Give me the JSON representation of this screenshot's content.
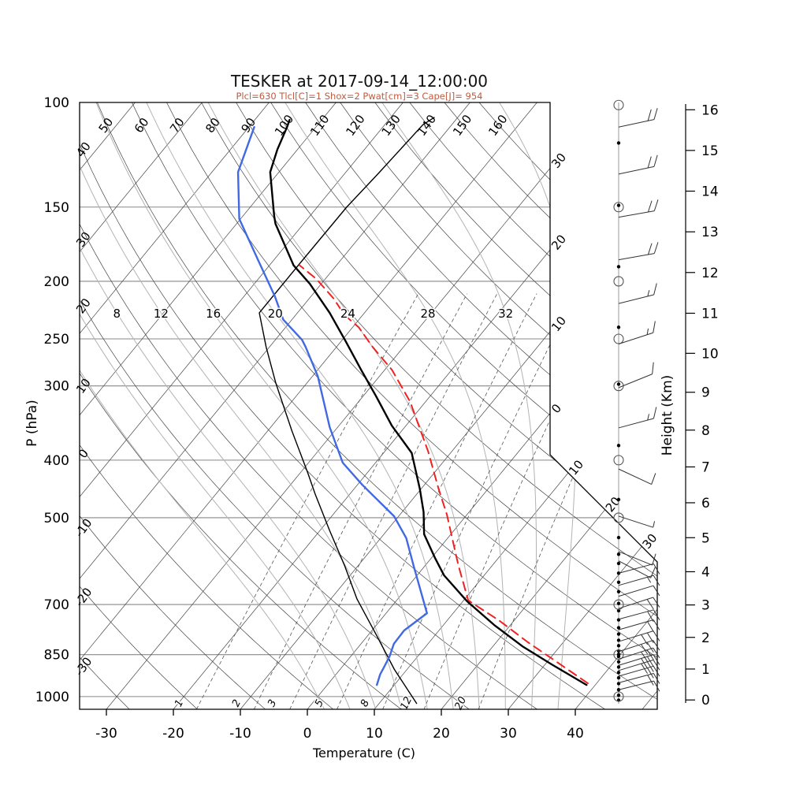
{
  "title": "TESKER at 2017-09-14_12:00:00",
  "subtitle": "Plcl=630 Tlcl[C]=1 Shox=2 Pwat[cm]=3 Cape[J]= 954",
  "colors": {
    "subtitle": "#bf5b3f",
    "temperature": "#000000",
    "dewpoint": "#4169e1",
    "parcel": "#ee2222",
    "wetbulb": "#000000",
    "grid_dark": "#444444",
    "grid_pressure": "#888888",
    "moist_adiabat": "#b3b3b3",
    "mixing_ratio": "#555555"
  },
  "axes": {
    "xlabel": "Temperature (C)",
    "ylabel": "P (hPa)",
    "ylabel_right": "Height (Km)",
    "pressure_ticks": [
      100,
      150,
      200,
      250,
      300,
      400,
      500,
      700,
      850,
      1000
    ],
    "pressure_range": [
      100,
      1050
    ],
    "temp_ticks": [
      -30,
      -20,
      -10,
      0,
      10,
      20,
      30,
      40
    ],
    "height_ticks": [
      0,
      1,
      2,
      3,
      4,
      5,
      6,
      7,
      8,
      9,
      10,
      11,
      12,
      13,
      14,
      15,
      16
    ]
  },
  "grid": {
    "isotherms": {
      "start": -110,
      "end": 50,
      "step": 10
    },
    "isotherm_edge_labels": [
      {
        "t": -30,
        "label": "30"
      },
      {
        "t": -20,
        "label": "20"
      },
      {
        "t": -10,
        "label": "10"
      },
      {
        "t": 0,
        "label": "0"
      }
    ],
    "isotherm_diag_labels": [
      {
        "t": 10,
        "label": "10"
      },
      {
        "t": 20,
        "label": "20"
      },
      {
        "t": 30,
        "label": "30"
      }
    ],
    "dry_adiabats": {
      "start": -30,
      "end": 160,
      "step": 10
    },
    "moist_adiabats": {
      "values": [
        0,
        4,
        8,
        12,
        16,
        20,
        24,
        28,
        32,
        36
      ],
      "labeled": [
        8,
        12,
        16,
        20,
        24,
        28,
        32
      ]
    },
    "mixing_ratio_g_kg": [
      1,
      2,
      3,
      5,
      8,
      12,
      20
    ]
  },
  "chart_data": {
    "type": "skewt-log-p",
    "station": "TESKER",
    "valid_time": "2017-09-14_12:00:00",
    "parameters": {
      "Plcl": 630,
      "Tlcl_C": 1,
      "Shox": 2,
      "Pwat_cm": 3,
      "Cape_J": 954
    },
    "series": [
      {
        "name": "temperature",
        "units": "[hPa, C]",
        "points": [
          [
            956,
            38.7
          ],
          [
            883,
            31.0
          ],
          [
            823,
            24.4
          ],
          [
            758,
            17.6
          ],
          [
            691,
            10.6
          ],
          [
            625,
            4.0
          ],
          [
            584,
            0.5
          ],
          [
            533,
            -4.0
          ],
          [
            489,
            -6.8
          ],
          [
            447,
            -10.2
          ],
          [
            389,
            -15.8
          ],
          [
            350,
            -22.1
          ],
          [
            312,
            -28.1
          ],
          [
            282,
            -33.5
          ],
          [
            252,
            -39.4
          ],
          [
            226,
            -45.2
          ],
          [
            202,
            -51.7
          ],
          [
            188,
            -56.4
          ],
          [
            160,
            -64.2
          ],
          [
            155,
            -65.4
          ],
          [
            131,
            -71.3
          ],
          [
            120,
            -73.0
          ],
          [
            110,
            -74.3
          ],
          [
            107,
            -74.8
          ]
        ]
      },
      {
        "name": "dewpoint",
        "units": "[hPa, C]",
        "points": [
          [
            956,
            7.4
          ],
          [
            918,
            6.6
          ],
          [
            893,
            6.3
          ],
          [
            856,
            5.8
          ],
          [
            815,
            4.9
          ],
          [
            774,
            4.8
          ],
          [
            724,
            6.1
          ],
          [
            601,
            -1.8
          ],
          [
            541,
            -6.2
          ],
          [
            497,
            -10.7
          ],
          [
            465,
            -15.4
          ],
          [
            440,
            -19.3
          ],
          [
            404,
            -24.9
          ],
          [
            352,
            -31.2
          ],
          [
            289,
            -39.2
          ],
          [
            258,
            -44.6
          ],
          [
            251,
            -46.0
          ],
          [
            232,
            -51.3
          ],
          [
            212,
            -55.4
          ],
          [
            184,
            -62.4
          ],
          [
            157,
            -70.2
          ],
          [
            131,
            -76.1
          ],
          [
            110,
            -79.2
          ]
        ]
      },
      {
        "name": "parcel",
        "units": "[hPa, C]",
        "dashed": true,
        "points": [
          [
            950,
            38.7
          ],
          [
            875,
            31.5
          ],
          [
            810,
            24.7
          ],
          [
            745,
            17.8
          ],
          [
            689,
            10.7
          ],
          [
            601,
            4.9
          ],
          [
            494,
            -3.0
          ],
          [
            447,
            -7.4
          ],
          [
            387,
            -13.5
          ],
          [
            319,
            -22.3
          ],
          [
            282,
            -28.9
          ],
          [
            258,
            -34.6
          ],
          [
            239,
            -39.1
          ],
          [
            228,
            -42.7
          ],
          [
            214,
            -46.3
          ],
          [
            198,
            -51.4
          ],
          [
            188,
            -55.5
          ]
        ]
      },
      {
        "name": "wetbulb",
        "units": "[hPa, C]",
        "points": [
          [
            1027,
            15.6
          ],
          [
            900,
            8.1
          ],
          [
            789,
            1.3
          ],
          [
            685,
            -6.1
          ],
          [
            601,
            -12.1
          ],
          [
            525,
            -18.6
          ],
          [
            456,
            -25.2
          ],
          [
            420,
            -28.9
          ],
          [
            357,
            -36.4
          ],
          [
            297,
            -44.6
          ],
          [
            258,
            -50.5
          ],
          [
            226,
            -55.7
          ],
          [
            187,
            -55.7
          ],
          [
            150,
            -55.6
          ],
          [
            132,
            -55.0
          ],
          [
            109,
            -54.3
          ],
          [
            106,
            -53.5
          ]
        ]
      }
    ]
  },
  "wind": {
    "dots_p": [
      117,
      149,
      189,
      239,
      298,
      378,
      466,
      540,
      576,
      597,
      620,
      642,
      666,
      697,
      717,
      743,
      766,
      785,
      804,
      821,
      838,
      849,
      856,
      874,
      892,
      911,
      930,
      951,
      974,
      995,
      1014
    ],
    "circles_p": [
      101,
      150,
      200,
      250,
      300,
      400,
      500,
      700,
      850,
      1000
    ],
    "dotted_circles_p": [
      300,
      700,
      850,
      1000
    ],
    "barbs": [
      {
        "p": 110,
        "ang": 12,
        "ticks": 2,
        "half": 0
      },
      {
        "p": 132,
        "ang": 12,
        "ticks": 2,
        "half": 0
      },
      {
        "p": 156,
        "ang": 10,
        "ticks": 2,
        "half": 0
      },
      {
        "p": 184,
        "ang": 10,
        "ticks": 2,
        "half": 0
      },
      {
        "p": 218,
        "ang": 14,
        "ticks": 1,
        "half": 1
      },
      {
        "p": 255,
        "ang": 18,
        "ticks": 1,
        "half": 1
      },
      {
        "p": 302,
        "ang": 22,
        "ticks": 1,
        "half": 0
      },
      {
        "p": 353,
        "ang": 15,
        "ticks": 1,
        "half": 1
      },
      {
        "p": 414,
        "ang": -25,
        "ticks": 1,
        "half": 0
      },
      {
        "p": 497,
        "ang": -18,
        "ticks": 0,
        "half": 1
      },
      {
        "p": 570,
        "ang": -22,
        "ticks": 1,
        "half": 0
      },
      {
        "p": 591,
        "ang": -28,
        "ticks": 1,
        "half": 0
      },
      {
        "p": 620,
        "ang": 15,
        "ticks": 1,
        "half": 0
      },
      {
        "p": 650,
        "ang": 16,
        "ticks": 1,
        "half": 1
      },
      {
        "p": 678,
        "ang": 17,
        "ticks": 1,
        "half": 0
      },
      {
        "p": 711,
        "ang": 18,
        "ticks": 2,
        "half": 0
      },
      {
        "p": 741,
        "ang": 15,
        "ticks": 2,
        "half": 0
      },
      {
        "p": 772,
        "ang": 16,
        "ticks": 2,
        "half": 0
      },
      {
        "p": 808,
        "ang": 17,
        "ticks": 3,
        "half": 0
      },
      {
        "p": 840,
        "ang": 18,
        "ticks": 3,
        "half": 0
      },
      {
        "p": 865,
        "ang": 18,
        "ticks": 3,
        "half": 0
      },
      {
        "p": 886,
        "ang": 17,
        "ticks": 3,
        "half": 0
      },
      {
        "p": 904,
        "ang": 17,
        "ticks": 3,
        "half": 0
      },
      {
        "p": 924,
        "ang": 16,
        "ticks": 2,
        "half": 0
      },
      {
        "p": 948,
        "ang": 15,
        "ticks": 2,
        "half": 0
      },
      {
        "p": 974,
        "ang": 14,
        "ticks": 1,
        "half": 0
      }
    ]
  }
}
